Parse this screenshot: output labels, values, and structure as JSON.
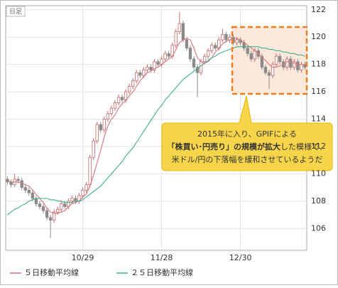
{
  "chart_data": {
    "type": "candlestick",
    "period_label": "日足",
    "categories": [
      null,
      null,
      null,
      null,
      null,
      null,
      null,
      null,
      null,
      null,
      null,
      null,
      null,
      null,
      null,
      null,
      null,
      null,
      null,
      null,
      null,
      "10/29",
      null,
      null,
      null,
      null,
      null,
      null,
      null,
      null,
      null,
      null,
      null,
      null,
      null,
      null,
      null,
      null,
      null,
      null,
      null,
      null,
      null,
      "11/28",
      null,
      null,
      null,
      null,
      null,
      null,
      null,
      null,
      null,
      null,
      null,
      null,
      null,
      null,
      null,
      null,
      null,
      null,
      null,
      null,
      null,
      "12/30",
      null,
      null,
      null,
      null,
      null,
      null,
      null,
      null,
      null,
      null,
      null,
      null,
      null,
      null,
      null,
      null,
      null,
      null
    ],
    "candles": {
      "up_color": "#ffffff",
      "up_stroke": "#c26a6a",
      "down_color": "#8a8a8a",
      "open": [
        109.6,
        109.4,
        109.2,
        109.6,
        109.5,
        109.0,
        108.8,
        108.6,
        108.2,
        107.8,
        107.6,
        107.3,
        106.8,
        106.6,
        107.2,
        107.4,
        107.8,
        107.6,
        108.0,
        108.2,
        108.0,
        108.4,
        108.8,
        109.2,
        111.2,
        112.4,
        113.6,
        113.2,
        114.0,
        114.4,
        114.8,
        115.2,
        115.6,
        115.4,
        116.0,
        116.4,
        116.8,
        117.4,
        117.2,
        117.6,
        117.8,
        117.6,
        118.2,
        118.0,
        118.4,
        118.8,
        118.6,
        119.4,
        120.4,
        121.0,
        119.8,
        119.2,
        118.4,
        117.8,
        117.4,
        118.2,
        118.6,
        119.0,
        119.4,
        119.2,
        119.8,
        120.2,
        119.8,
        120.0,
        119.6,
        119.8,
        119.6,
        119.2,
        118.8,
        118.4,
        119.0,
        118.6,
        117.8,
        117.4,
        117.2,
        118.0,
        118.6,
        118.2,
        117.8,
        118.4,
        117.8,
        118.2,
        117.6,
        118.0
      ],
      "high": [
        109.8,
        109.6,
        110.0,
        109.8,
        109.7,
        109.2,
        109.0,
        108.8,
        108.4,
        108.0,
        107.8,
        107.5,
        107.0,
        107.4,
        107.6,
        108.0,
        108.0,
        108.2,
        108.4,
        108.4,
        108.6,
        109.0,
        109.4,
        111.4,
        112.6,
        113.8,
        113.8,
        114.2,
        114.6,
        115.0,
        115.4,
        115.8,
        115.8,
        116.2,
        116.6,
        117.0,
        117.6,
        117.6,
        117.8,
        118.0,
        118.0,
        118.4,
        118.4,
        118.6,
        119.0,
        119.0,
        119.6,
        120.6,
        121.8,
        121.2,
        120.0,
        119.4,
        118.6,
        118.0,
        118.4,
        118.8,
        119.2,
        119.6,
        119.6,
        120.0,
        120.6,
        120.4,
        120.2,
        120.2,
        120.0,
        120.0,
        119.8,
        119.4,
        119.0,
        119.2,
        119.2,
        118.8,
        118.0,
        117.6,
        118.2,
        118.8,
        118.8,
        118.4,
        118.6,
        118.6,
        118.4,
        118.4,
        118.2,
        118.2
      ],
      "low": [
        109.2,
        109.0,
        109.0,
        109.3,
        108.8,
        108.6,
        108.4,
        108.0,
        107.6,
        107.4,
        107.1,
        106.6,
        105.3,
        106.4,
        107.0,
        107.2,
        107.4,
        107.4,
        107.8,
        107.8,
        107.8,
        108.2,
        108.6,
        109.0,
        111.0,
        112.2,
        113.0,
        113.0,
        113.8,
        114.2,
        114.6,
        115.0,
        115.2,
        115.2,
        115.8,
        116.2,
        116.6,
        117.0,
        117.0,
        117.4,
        117.4,
        117.4,
        117.8,
        117.8,
        118.2,
        118.4,
        118.4,
        119.2,
        120.2,
        119.6,
        119.0,
        118.2,
        117.6,
        115.6,
        117.2,
        118.0,
        118.4,
        118.8,
        119.0,
        119.0,
        119.6,
        119.6,
        119.6,
        119.4,
        119.4,
        119.4,
        119.0,
        118.6,
        118.2,
        118.2,
        118.4,
        117.6,
        117.2,
        116.2,
        117.0,
        117.8,
        118.0,
        117.6,
        117.6,
        117.6,
        117.6,
        117.4,
        117.4,
        117.6
      ],
      "close": [
        109.4,
        109.2,
        109.6,
        109.5,
        109.0,
        108.8,
        108.6,
        108.2,
        107.8,
        107.6,
        107.3,
        106.8,
        106.6,
        107.2,
        107.4,
        107.8,
        107.6,
        108.0,
        108.2,
        108.0,
        108.4,
        108.8,
        109.2,
        111.2,
        112.4,
        113.6,
        113.2,
        114.0,
        114.4,
        114.8,
        115.2,
        115.6,
        115.4,
        116.0,
        116.4,
        116.8,
        117.4,
        117.2,
        117.6,
        117.8,
        117.6,
        118.2,
        118.0,
        118.4,
        118.8,
        118.6,
        119.4,
        120.4,
        121.0,
        119.8,
        119.2,
        118.4,
        117.8,
        117.4,
        118.2,
        118.6,
        119.0,
        119.4,
        119.2,
        119.8,
        120.2,
        119.8,
        120.0,
        119.6,
        119.8,
        119.6,
        119.2,
        118.8,
        118.4,
        119.0,
        118.6,
        117.8,
        117.4,
        117.2,
        118.0,
        118.6,
        118.2,
        117.8,
        118.4,
        117.8,
        118.2,
        117.6,
        118.0,
        117.8
      ]
    },
    "series": [
      {
        "name": "５日移動平均線",
        "color": "#d9737a",
        "values": [
          109.5,
          109.4,
          109.4,
          109.4,
          109.3,
          109.2,
          109.1,
          108.8,
          108.5,
          108.2,
          107.9,
          107.5,
          107.2,
          107.1,
          107.1,
          107.2,
          107.3,
          107.6,
          107.8,
          107.9,
          108.0,
          108.3,
          108.5,
          109.1,
          109.9,
          110.8,
          111.7,
          112.7,
          113.5,
          114.0,
          114.3,
          114.8,
          115.1,
          115.4,
          115.7,
          116.0,
          116.4,
          116.8,
          117.1,
          117.4,
          117.5,
          117.7,
          117.8,
          118.0,
          118.2,
          118.4,
          118.6,
          119.1,
          119.6,
          119.8,
          119.9,
          119.8,
          119.2,
          118.5,
          118.2,
          118.1,
          118.2,
          118.5,
          118.9,
          119.2,
          119.5,
          119.7,
          119.8,
          119.9,
          119.9,
          119.8,
          119.6,
          119.4,
          119.2,
          119.0,
          118.8,
          118.5,
          118.3,
          118.0,
          117.8,
          117.8,
          117.9,
          118.0,
          118.2,
          118.2,
          118.1,
          118.0,
          118.0,
          117.9
        ]
      },
      {
        "name": "２５日移動平均線",
        "color": "#3cae8c",
        "values": [
          107.0,
          107.2,
          107.4,
          107.5,
          107.7,
          107.8,
          108.0,
          108.1,
          108.2,
          108.2,
          108.2,
          108.2,
          108.1,
          108.1,
          108.0,
          108.0,
          107.9,
          107.9,
          107.9,
          108.0,
          108.0,
          108.1,
          108.3,
          108.5,
          108.7,
          108.9,
          109.1,
          109.4,
          109.7,
          110.0,
          110.3,
          110.6,
          110.9,
          111.3,
          111.6,
          111.9,
          112.3,
          112.7,
          113.1,
          113.5,
          113.9,
          114.3,
          114.7,
          115.0,
          115.4,
          115.7,
          116.0,
          116.3,
          116.6,
          116.9,
          117.1,
          117.3,
          117.5,
          117.7,
          117.9,
          118.1,
          118.3,
          118.5,
          118.6,
          118.8,
          118.9,
          119.0,
          119.1,
          119.2,
          119.3,
          119.3,
          119.3,
          119.3,
          119.3,
          119.3,
          119.3,
          119.2,
          119.2,
          119.1,
          119.1,
          119.0,
          119.0,
          118.9,
          118.9,
          118.8,
          118.8,
          118.7,
          118.7,
          118.6
        ]
      }
    ],
    "ylim": [
      104.4,
      122.3
    ],
    "yticks": [
      106,
      108,
      110,
      112,
      114,
      116,
      118,
      120,
      122
    ],
    "grid": true,
    "annotation": {
      "line1": "2015年に入り、GPIFによる",
      "line2_bold": "「株買い･円売り」の規模が拡大",
      "line2_rest": "した模様で、",
      "line3": "米ドル/円の下落幅を緩和させているようだ"
    }
  }
}
